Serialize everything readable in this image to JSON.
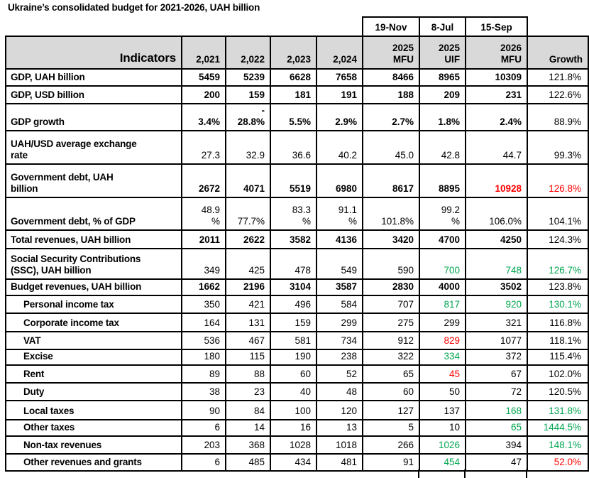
{
  "title": "Ukraine’s consolidated budget for 2021-2026, UAH billion",
  "colors": {
    "green": "#00A650",
    "red": "#FF0000",
    "header_bg": "#D9D9D9"
  },
  "header": {
    "dates": [
      "19-Nov",
      "8-Jul",
      "15-Sep"
    ],
    "indicators_label": "Indicators",
    "columns": [
      "2,021",
      "2,022",
      "2,023",
      "2,024",
      "2025\nMFU",
      "2025\nUIF",
      "2026\nMFU",
      "Growth"
    ]
  },
  "rows": [
    {
      "label": "GDP, UAH billion",
      "indent": false,
      "values_bold": true,
      "values": [
        "5459",
        "5239",
        "6628",
        "7658",
        "8466",
        "8965",
        "10309"
      ],
      "value_colors": [
        null,
        null,
        null,
        null,
        null,
        null,
        null
      ],
      "growth": "121.8%",
      "growth_color": null
    },
    {
      "label": "GDP, USD billion",
      "indent": false,
      "values_bold": true,
      "values": [
        "200",
        "159",
        "181",
        "191",
        "188",
        "209",
        "231"
      ],
      "value_colors": [
        null,
        null,
        null,
        null,
        null,
        null,
        null
      ],
      "growth": "122.6%",
      "growth_color": null
    },
    {
      "label": "GDP growth",
      "indent": false,
      "values_bold": true,
      "values": [
        "3.4%",
        "-\n28.8%",
        "5.5%",
        "2.9%",
        "2.7%",
        "1.8%",
        "2.4%"
      ],
      "value_colors": [
        null,
        null,
        null,
        null,
        null,
        null,
        null
      ],
      "growth": "88.9%",
      "growth_color": null
    },
    {
      "label": "UAH/USD average exchange\nrate",
      "indent": false,
      "values_bold": false,
      "values": [
        "27.3",
        "32.9",
        "36.6",
        "40.2",
        "45.0",
        "42.8",
        "44.7"
      ],
      "value_colors": [
        null,
        null,
        null,
        null,
        null,
        null,
        null
      ],
      "growth": "99.3%",
      "growth_color": null
    },
    {
      "label": "Government debt, UAH\nbillion",
      "indent": false,
      "values_bold": true,
      "values": [
        "2672",
        "4071",
        "5519",
        "6980",
        "8617",
        "8895",
        "10928"
      ],
      "value_colors": [
        null,
        null,
        null,
        null,
        null,
        null,
        "red"
      ],
      "growth": "126.8%",
      "growth_color": "red"
    },
    {
      "label": "Government debt, % of GDP",
      "indent": false,
      "values_bold": false,
      "values": [
        "48.9\n%",
        "77.7%",
        "83.3\n%",
        "91.1\n%",
        "101.8%",
        "99.2\n%",
        "106.0%"
      ],
      "value_colors": [
        null,
        null,
        null,
        null,
        null,
        null,
        null
      ],
      "growth": "104.1%",
      "growth_color": null
    },
    {
      "label": "Total revenues, UAH billion",
      "indent": false,
      "values_bold": true,
      "values": [
        "2011",
        "2622",
        "3582",
        "4136",
        "3420",
        "4700",
        "4250"
      ],
      "value_colors": [
        null,
        null,
        null,
        null,
        null,
        null,
        null
      ],
      "growth": "124.3%",
      "growth_color": null
    },
    {
      "label": "Social Security Contributions\n(SSC), UAH billion",
      "indent": false,
      "values_bold": false,
      "values": [
        "349",
        "425",
        "478",
        "549",
        "590",
        "700",
        "748"
      ],
      "value_colors": [
        null,
        null,
        null,
        null,
        null,
        "green",
        "green"
      ],
      "growth": "126.7%",
      "growth_color": "green"
    },
    {
      "label": "Budget revenues, UAH billion",
      "indent": false,
      "values_bold": true,
      "values": [
        "1662",
        "2196",
        "3104",
        "3587",
        "2830",
        "4000",
        "3502"
      ],
      "value_colors": [
        null,
        null,
        null,
        null,
        null,
        null,
        null
      ],
      "growth": "123.8%",
      "growth_color": null
    },
    {
      "label": "Personal income tax",
      "indent": true,
      "values_bold": false,
      "values": [
        "350",
        "421",
        "496",
        "584",
        "707",
        "817",
        "920"
      ],
      "value_colors": [
        null,
        null,
        null,
        null,
        null,
        "green",
        "green"
      ],
      "growth": "130.1%",
      "growth_color": "green"
    },
    {
      "label": "Corporate income tax",
      "indent": true,
      "values_bold": false,
      "values": [
        "164",
        "131",
        "159",
        "299",
        "275",
        "299",
        "321"
      ],
      "value_colors": [
        null,
        null,
        null,
        null,
        null,
        null,
        null
      ],
      "growth": "116.8%",
      "growth_color": null
    },
    {
      "label": "VAT",
      "indent": true,
      "values_bold": false,
      "values": [
        "536",
        "467",
        "581",
        "734",
        "912",
        "829",
        "1077"
      ],
      "value_colors": [
        null,
        null,
        null,
        null,
        null,
        "red",
        null
      ],
      "growth": "118.1%",
      "growth_color": null
    },
    {
      "label": "Excise",
      "indent": true,
      "values_bold": false,
      "values": [
        "180",
        "115",
        "190",
        "238",
        "322",
        "334",
        "372"
      ],
      "value_colors": [
        null,
        null,
        null,
        null,
        null,
        "green",
        null
      ],
      "growth": "115.4%",
      "growth_color": null
    },
    {
      "label": "Rent",
      "indent": true,
      "values_bold": false,
      "values": [
        "89",
        "88",
        "60",
        "52",
        "65",
        "45",
        "67"
      ],
      "value_colors": [
        null,
        null,
        null,
        null,
        null,
        "red",
        null
      ],
      "growth": "102.0%",
      "growth_color": null
    },
    {
      "label": "Duty",
      "indent": true,
      "values_bold": false,
      "values": [
        "38",
        "23",
        "40",
        "48",
        "60",
        "50",
        "72"
      ],
      "value_colors": [
        null,
        null,
        null,
        null,
        null,
        null,
        null
      ],
      "growth": "120.5%",
      "growth_color": null
    },
    {
      "label": "Local taxes",
      "indent": true,
      "values_bold": false,
      "values": [
        "90",
        "84",
        "100",
        "120",
        "127",
        "137",
        "168"
      ],
      "value_colors": [
        null,
        null,
        null,
        null,
        null,
        null,
        "green"
      ],
      "growth": "131.8%",
      "growth_color": "green"
    },
    {
      "label": "Other taxes",
      "indent": true,
      "values_bold": false,
      "values": [
        "6",
        "14",
        "16",
        "13",
        "5",
        "10",
        "65"
      ],
      "value_colors": [
        null,
        null,
        null,
        null,
        null,
        null,
        "green"
      ],
      "growth": "1444.5%",
      "growth_color": "green"
    },
    {
      "label": "Non-tax revenues",
      "indent": true,
      "values_bold": false,
      "values": [
        "203",
        "368",
        "1028",
        "1018",
        "266",
        "1026",
        "394"
      ],
      "value_colors": [
        null,
        null,
        null,
        null,
        null,
        "green",
        null
      ],
      "growth": "148.1%",
      "growth_color": "green"
    },
    {
      "label": "Other revenues and grants",
      "indent": true,
      "values_bold": false,
      "values": [
        "6",
        "485",
        "434",
        "481",
        "91",
        "454",
        "47"
      ],
      "value_colors": [
        null,
        null,
        null,
        null,
        null,
        "green",
        null
      ],
      "growth": "52.0%",
      "growth_color": "red"
    }
  ]
}
